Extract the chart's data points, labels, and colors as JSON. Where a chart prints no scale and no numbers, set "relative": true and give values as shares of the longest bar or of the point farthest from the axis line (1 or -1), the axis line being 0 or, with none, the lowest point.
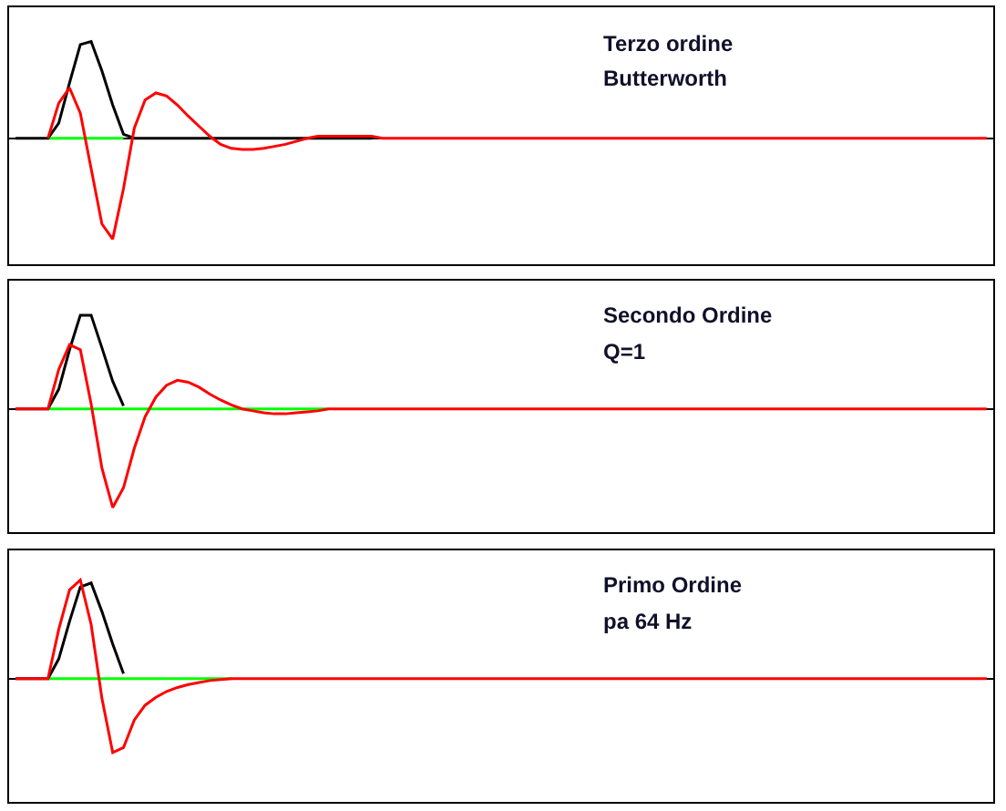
{
  "chart_data": [
    {
      "type": "line",
      "relative": true,
      "annotations": [
        "Terzo ordine",
        "Butterworth"
      ],
      "categories": [
        null,
        null,
        null,
        null,
        null,
        null,
        null,
        null,
        null,
        null,
        null,
        null,
        null,
        null,
        null,
        null,
        null,
        null,
        null,
        null,
        null,
        null,
        null,
        null,
        null,
        null,
        null,
        null,
        null,
        null,
        null,
        null,
        null,
        null,
        null,
        null,
        null,
        null,
        null,
        null,
        null,
        null,
        null,
        null,
        null,
        null,
        null,
        null,
        null,
        null,
        null,
        null,
        null,
        null,
        null,
        null,
        null,
        null,
        null,
        null,
        null,
        null,
        null,
        null,
        null,
        null,
        null,
        null,
        null,
        null,
        null,
        null,
        null,
        null,
        null,
        null,
        null,
        null,
        null,
        null,
        null,
        null,
        null,
        null,
        null,
        null,
        null,
        null,
        null,
        null,
        null
      ],
      "series": [
        {
          "color": "#00ff00",
          "values": [
            null,
            null,
            null,
            0,
            0,
            0,
            0,
            0,
            0,
            0,
            0,
            null,
            null,
            null,
            null,
            null,
            null,
            null,
            null,
            null,
            null,
            null,
            null,
            null,
            null,
            null,
            null,
            null,
            null,
            null,
            null,
            null,
            null,
            null,
            null,
            null,
            null,
            null,
            null,
            null,
            null,
            null,
            null,
            null,
            null,
            null,
            null,
            null,
            null,
            null,
            null,
            null,
            null,
            null,
            null,
            null,
            null,
            null,
            null,
            null,
            null,
            null,
            null,
            null,
            null,
            null,
            null,
            null,
            null,
            null,
            null,
            null,
            null,
            null,
            null,
            null,
            null,
            null,
            null,
            null,
            null,
            null,
            null,
            null,
            null,
            null,
            null,
            null,
            null,
            null,
            null
          ]
        },
        {
          "color": "#000000",
          "values": [
            0,
            0,
            0,
            0,
            0.15,
            0.55,
            0.93,
            0.96,
            0.67,
            0.33,
            0.04,
            0,
            0,
            0,
            0,
            0,
            0,
            0,
            0,
            0,
            0,
            0,
            0,
            0,
            0,
            0,
            0,
            0,
            0,
            0,
            0,
            0,
            0,
            0,
            null,
            null,
            null,
            null,
            null,
            null,
            null,
            null,
            null,
            null,
            null,
            null,
            null,
            null,
            null,
            null,
            null,
            null,
            null,
            null,
            null,
            null,
            null,
            null,
            null,
            null,
            null,
            null,
            null,
            null,
            null,
            null,
            null,
            null,
            null,
            null,
            null,
            null,
            null,
            null,
            null,
            null,
            null,
            null,
            null,
            null,
            null,
            null,
            null,
            null,
            null,
            null,
            null,
            null,
            null,
            null,
            null
          ]
        },
        {
          "color": "#ff0000",
          "values": [
            null,
            null,
            null,
            0,
            0.35,
            0.5,
            0.25,
            -0.3,
            -0.85,
            -1,
            -0.5,
            0.1,
            0.38,
            0.45,
            0.42,
            0.33,
            0.22,
            0.12,
            0.02,
            -0.06,
            -0.1,
            -0.11,
            -0.11,
            -0.1,
            -0.08,
            -0.06,
            -0.03,
            0,
            0.02,
            0.02,
            0.02,
            0.02,
            0.02,
            0.02,
            0,
            0,
            0,
            0,
            0,
            0,
            0,
            0,
            0,
            0,
            0,
            0,
            0,
            0,
            0,
            0,
            0,
            0,
            0,
            0,
            0,
            0,
            0,
            0,
            0,
            0,
            0,
            0,
            0,
            0,
            0,
            0,
            0,
            0,
            0,
            0,
            0,
            0,
            0,
            0,
            0,
            0,
            0,
            0,
            0,
            0,
            0,
            0,
            0,
            0,
            0,
            0,
            0,
            0,
            0,
            0,
            0
          ]
        }
      ]
    },
    {
      "type": "line",
      "relative": true,
      "annotations": [
        "Secondo Ordine",
        "Q=1"
      ],
      "categories": [
        null,
        null,
        null,
        null,
        null,
        null,
        null,
        null,
        null,
        null,
        null,
        null,
        null,
        null,
        null,
        null,
        null,
        null,
        null,
        null,
        null,
        null,
        null,
        null,
        null,
        null,
        null,
        null,
        null,
        null,
        null,
        null,
        null,
        null,
        null,
        null,
        null,
        null,
        null,
        null,
        null,
        null,
        null,
        null,
        null,
        null,
        null,
        null,
        null,
        null,
        null,
        null,
        null,
        null,
        null,
        null,
        null,
        null,
        null,
        null,
        null,
        null,
        null,
        null,
        null,
        null,
        null,
        null,
        null,
        null,
        null,
        null,
        null,
        null,
        null,
        null,
        null,
        null,
        null,
        null,
        null,
        null,
        null,
        null,
        null,
        null,
        null,
        null,
        null,
        null,
        null
      ],
      "series": [
        {
          "color": "#00ff00",
          "values": [
            null,
            null,
            null,
            0,
            0,
            0,
            0,
            0,
            0,
            0,
            0,
            0,
            0,
            0,
            0,
            0,
            0,
            0,
            0,
            0,
            0,
            0,
            0,
            0,
            0,
            0,
            0,
            0,
            0,
            0,
            null,
            null,
            null,
            null,
            null,
            null,
            null,
            null,
            null,
            null,
            null,
            null,
            null,
            null,
            null,
            null,
            null,
            null,
            null,
            null,
            null,
            null,
            null,
            null,
            null,
            null,
            null,
            null,
            null,
            null,
            null,
            null,
            null,
            null,
            null,
            null,
            null,
            null,
            null,
            null,
            null,
            null,
            null,
            null,
            null,
            null,
            null,
            null,
            null,
            null,
            null,
            null,
            null,
            null,
            null,
            null,
            null,
            null,
            null,
            null,
            null
          ]
        },
        {
          "color": "#000000",
          "values": [
            0,
            0,
            0,
            0,
            0.2,
            0.6,
            0.95,
            0.95,
            0.62,
            0.28,
            0.03,
            null,
            null,
            null,
            null,
            null,
            null,
            null,
            null,
            null,
            null,
            null,
            null,
            null,
            null,
            null,
            null,
            null,
            null,
            null,
            null,
            null,
            null,
            null,
            null,
            null,
            null,
            null,
            null,
            null,
            null,
            null,
            null,
            null,
            null,
            null,
            null,
            null,
            null,
            null,
            null,
            null,
            null,
            null,
            null,
            null,
            null,
            null,
            null,
            null,
            null,
            null,
            null,
            null,
            null,
            null,
            null,
            null,
            null,
            null,
            null,
            null,
            null,
            null,
            null,
            null,
            null,
            null,
            null,
            null,
            null,
            null,
            null,
            null,
            null,
            null,
            null,
            null,
            null,
            null,
            null
          ]
        },
        {
          "color": "#ff0000",
          "values": [
            0,
            0,
            0,
            0,
            0.4,
            0.65,
            0.6,
            0.05,
            -0.6,
            -1,
            -0.8,
            -0.4,
            -0.08,
            0.12,
            0.24,
            0.29,
            0.27,
            0.22,
            0.15,
            0.09,
            0.04,
            0,
            -0.02,
            -0.04,
            -0.05,
            -0.05,
            -0.04,
            -0.03,
            -0.02,
            0,
            0,
            0,
            0,
            0,
            0,
            0,
            0,
            0,
            0,
            0,
            0,
            0,
            0,
            0,
            0,
            0,
            0,
            0,
            0,
            0,
            0,
            0,
            0,
            0,
            0,
            0,
            0,
            0,
            0,
            0,
            0,
            0,
            0,
            0,
            0,
            0,
            0,
            0,
            0,
            0,
            0,
            0,
            0,
            0,
            0,
            0,
            0,
            0,
            0,
            0,
            0,
            0,
            0,
            0,
            0,
            0,
            0,
            0,
            0,
            0,
            0
          ]
        }
      ]
    },
    {
      "type": "line",
      "relative": true,
      "annotations": [
        "Primo Ordine",
        "pa 64 Hz"
      ],
      "categories": [
        null,
        null,
        null,
        null,
        null,
        null,
        null,
        null,
        null,
        null,
        null,
        null,
        null,
        null,
        null,
        null,
        null,
        null,
        null,
        null,
        null,
        null,
        null,
        null,
        null,
        null,
        null,
        null,
        null,
        null,
        null,
        null,
        null,
        null,
        null,
        null,
        null,
        null,
        null,
        null,
        null,
        null,
        null,
        null,
        null,
        null,
        null,
        null,
        null,
        null,
        null,
        null,
        null,
        null,
        null,
        null,
        null,
        null,
        null,
        null,
        null,
        null,
        null,
        null,
        null,
        null,
        null,
        null,
        null,
        null,
        null,
        null,
        null,
        null,
        null,
        null,
        null,
        null,
        null,
        null,
        null,
        null,
        null,
        null,
        null,
        null,
        null,
        null,
        null,
        null,
        null
      ],
      "series": [
        {
          "color": "#00ff00",
          "values": [
            null,
            null,
            null,
            0,
            0,
            0,
            0,
            0,
            0,
            0,
            0,
            0,
            0,
            0,
            0,
            0,
            0,
            0,
            0,
            0,
            0,
            null,
            null,
            null,
            null,
            null,
            null,
            null,
            null,
            null,
            null,
            null,
            null,
            null,
            null,
            null,
            null,
            null,
            null,
            null,
            null,
            null,
            null,
            null,
            null,
            null,
            null,
            null,
            null,
            null,
            null,
            null,
            null,
            null,
            null,
            null,
            null,
            null,
            null,
            null,
            null,
            null,
            null,
            null,
            null,
            null,
            null,
            null,
            null,
            null,
            null,
            null,
            null,
            null,
            null,
            null,
            null,
            null,
            null,
            null,
            null,
            null,
            null,
            null,
            null,
            null,
            null,
            null,
            null,
            null,
            null
          ]
        },
        {
          "color": "#000000",
          "values": [
            0,
            0,
            0,
            0,
            0.2,
            0.58,
            0.93,
            0.97,
            0.68,
            0.35,
            0.05,
            null,
            null,
            null,
            null,
            null,
            null,
            null,
            null,
            null,
            null,
            null,
            null,
            null,
            null,
            null,
            null,
            null,
            null,
            null,
            null,
            null,
            null,
            null,
            null,
            null,
            null,
            null,
            null,
            null,
            null,
            null,
            null,
            null,
            null,
            null,
            null,
            null,
            null,
            null,
            null,
            null,
            null,
            null,
            null,
            null,
            null,
            null,
            null,
            null,
            null,
            null,
            null,
            null,
            null,
            null,
            null,
            null,
            null,
            null,
            null,
            null,
            null,
            null,
            null,
            null,
            null,
            null,
            null,
            null,
            null,
            null,
            null,
            null,
            null,
            null,
            null,
            null,
            null,
            null,
            null
          ]
        },
        {
          "color": "#ff0000",
          "values": [
            0,
            0,
            0,
            0,
            0.5,
            0.9,
            1,
            0.55,
            -0.2,
            -0.75,
            -0.7,
            -0.42,
            -0.27,
            -0.19,
            -0.13,
            -0.09,
            -0.06,
            -0.04,
            -0.02,
            -0.01,
            0,
            0,
            0,
            0,
            0,
            0,
            0,
            0,
            0,
            0,
            0,
            0,
            0,
            0,
            0,
            0,
            0,
            0,
            0,
            0,
            0,
            0,
            0,
            0,
            0,
            0,
            0,
            0,
            0,
            0,
            0,
            0,
            0,
            0,
            0,
            0,
            0,
            0,
            0,
            0,
            0,
            0,
            0,
            0,
            0,
            0,
            0,
            0,
            0,
            0,
            0,
            0,
            0,
            0,
            0,
            0,
            0,
            0,
            0,
            0,
            0,
            0,
            0,
            0,
            0,
            0,
            0,
            0,
            0,
            0,
            0
          ]
        }
      ]
    }
  ]
}
